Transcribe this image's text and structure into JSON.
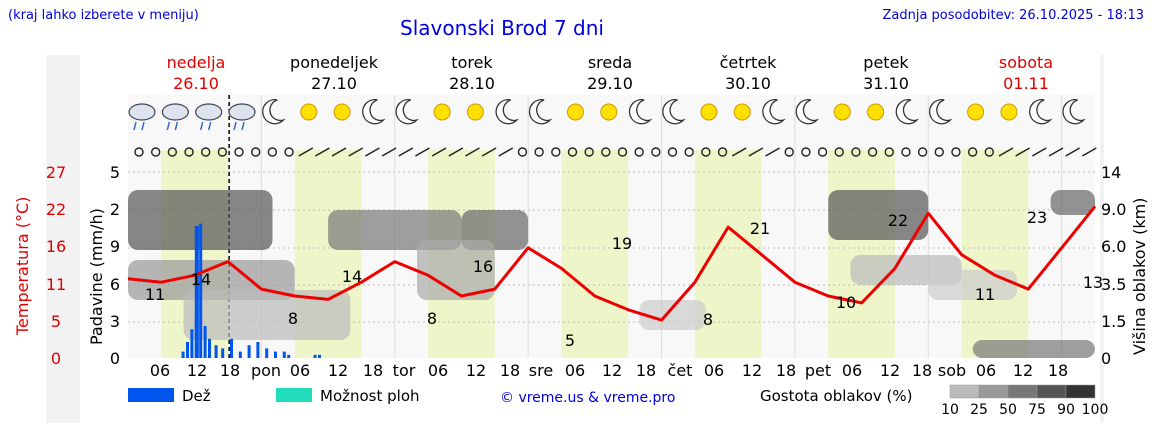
{
  "header": {
    "city_hint": "(kraj lahko izberete v meniju)",
    "title": "Slavonski Brod 7 dni",
    "updated": "Zadnja posodobitev: 26.10.2025 - 18:13"
  },
  "days": [
    {
      "name": "nedelja",
      "date": "26.10",
      "weekend": true
    },
    {
      "name": "ponedeljek",
      "date": "27.10",
      "weekend": false
    },
    {
      "name": "torek",
      "date": "28.10",
      "weekend": false
    },
    {
      "name": "sreda",
      "date": "29.10",
      "weekend": false
    },
    {
      "name": "četrtek",
      "date": "30.10",
      "weekend": false
    },
    {
      "name": "petek",
      "date": "31.10",
      "weekend": false
    },
    {
      "name": "sobota",
      "date": "01.11",
      "weekend": true
    }
  ],
  "x_ticks": [
    "06",
    "12",
    "18",
    "pon",
    "06",
    "12",
    "18",
    "tor",
    "06",
    "12",
    "18",
    "sre",
    "06",
    "12",
    "18",
    "čet",
    "06",
    "12",
    "18",
    "pet",
    "06",
    "12",
    "18",
    "sob",
    "06",
    "12",
    "18"
  ],
  "axes": {
    "temp_label": "Temperatura (°C)",
    "temp_ticks": [
      "27",
      "22",
      "16",
      "11",
      "5",
      "0"
    ],
    "precip_label": "Padavine (mm/h)",
    "precip_ticks": [
      "5",
      "2",
      "9",
      "6",
      "3",
      "0"
    ],
    "cloud_label": "Višina oblakov (km)",
    "cloud_ticks": [
      "14",
      "9.0",
      "6.0",
      "3.5",
      "1.5",
      "0"
    ]
  },
  "legend": {
    "rain": "Dež",
    "rain_color": "#0055ee",
    "storm": "Možnost ploh",
    "storm_color": "#22ddbb",
    "credit": "© vreme.us & vreme.pro",
    "cloud_density_label": "Gostota oblakov (%)",
    "cloud_density_levels": [
      "10",
      "25",
      "50",
      "75",
      "90",
      "100"
    ]
  },
  "chart_data": {
    "type": "line",
    "title": "Slavonski Brod 7 dni",
    "x_unit": "hour from 26.10 00:00",
    "series": [
      {
        "name": "Temperatura (°C)",
        "color": "#ee0000",
        "x": [
          0,
          6,
          12,
          18,
          24,
          30,
          36,
          42,
          48,
          54,
          60,
          66,
          72,
          78,
          84,
          90,
          96,
          102,
          108,
          114,
          120,
          126,
          132,
          138,
          144,
          150,
          156,
          162,
          168,
          174
        ],
        "values": [
          11.5,
          11,
          12,
          14,
          10,
          9,
          8.5,
          11,
          14,
          12,
          9,
          10,
          16,
          13,
          9,
          7,
          5.5,
          11,
          19,
          15,
          11,
          9,
          8,
          13,
          21,
          15,
          12,
          10,
          16,
          22
        ]
      }
    ],
    "temp_extremes": [
      "11",
      "14",
      "8",
      "14",
      "8",
      "16",
      "5",
      "19",
      "8",
      "21",
      "10",
      "22",
      "11",
      "23",
      "13"
    ],
    "ylim_temp": [
      0,
      27
    ],
    "precipitation_series": "Dež (mm/h)",
    "cloud_height_ticks_km": [
      0,
      1.5,
      3.5,
      6.0,
      9.0,
      14
    ]
  }
}
